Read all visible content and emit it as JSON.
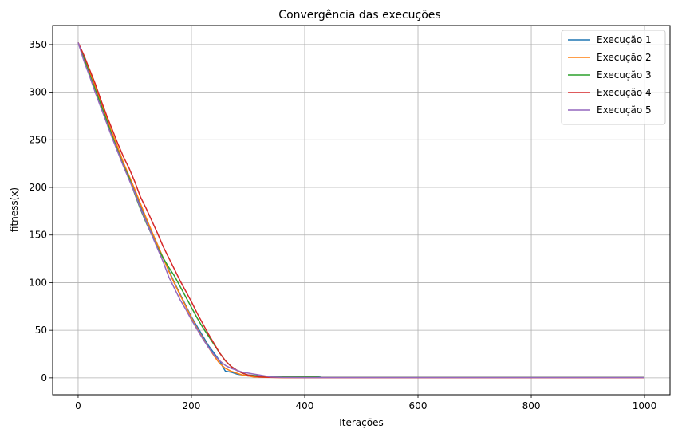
{
  "chart_data": {
    "type": "line",
    "title": "Convergência das execuções",
    "xlabel": "Iterações",
    "ylabel": "fitness(x)",
    "xlim": [
      -45,
      1045
    ],
    "ylim": [
      -17.7,
      370
    ],
    "xticks": [
      0,
      200,
      400,
      600,
      800,
      1000
    ],
    "yticks": [
      0,
      50,
      100,
      150,
      200,
      250,
      300,
      350
    ],
    "grid": true,
    "legend_position": "top-right",
    "series": [
      {
        "name": "Execução 1",
        "color": "#1f77b4",
        "x": [
          0,
          10,
          20,
          30,
          40,
          50,
          60,
          70,
          80,
          90,
          100,
          110,
          120,
          130,
          140,
          150,
          160,
          170,
          180,
          190,
          200,
          210,
          220,
          230,
          240,
          250,
          255,
          260,
          270,
          280,
          290,
          300,
          320,
          340,
          360,
          380,
          400,
          425,
          430,
          500,
          600,
          700,
          800,
          900,
          1000
        ],
        "y": [
          352,
          337,
          320,
          305,
          290,
          273,
          255,
          240,
          224,
          210,
          196,
          180,
          167,
          153,
          140,
          126,
          113,
          100,
          88,
          76,
          64,
          54,
          44,
          34,
          26,
          18,
          12,
          7,
          6,
          4,
          3,
          2,
          1.5,
          1,
          1,
          1,
          1,
          1,
          0.5,
          0.5,
          0.5,
          0.5,
          0.5,
          0.5,
          0.5
        ]
      },
      {
        "name": "Execução 2",
        "color": "#ff7f0e",
        "x": [
          0,
          10,
          20,
          30,
          40,
          50,
          60,
          70,
          80,
          90,
          100,
          110,
          120,
          130,
          140,
          150,
          160,
          170,
          180,
          190,
          200,
          210,
          220,
          230,
          240,
          250,
          260,
          270,
          280,
          290,
          300,
          310,
          330,
          360,
          400,
          500,
          600,
          700,
          800,
          900,
          1000
        ],
        "y": [
          352,
          338,
          322,
          306,
          290,
          273,
          257,
          242,
          226,
          212,
          198,
          183,
          168,
          154,
          140,
          126,
          112,
          99,
          87,
          75,
          63,
          52,
          42,
          32,
          23,
          15,
          10,
          7,
          5,
          3,
          2,
          1,
          0.5,
          0.3,
          0.2,
          0.2,
          0.2,
          0.2,
          0.2,
          0.2,
          0.2
        ]
      },
      {
        "name": "Execução 3",
        "color": "#2ca02c",
        "x": [
          0,
          10,
          20,
          30,
          40,
          50,
          60,
          70,
          80,
          90,
          100,
          110,
          120,
          130,
          140,
          150,
          160,
          170,
          180,
          190,
          200,
          210,
          220,
          230,
          240,
          250,
          260,
          270,
          280,
          290,
          300,
          320,
          340,
          360,
          380,
          400,
          420,
          430,
          500,
          600,
          700,
          800,
          900,
          1000
        ],
        "y": [
          352,
          336,
          319,
          303,
          287,
          271,
          254,
          238,
          223,
          210,
          193,
          177,
          163,
          150,
          137,
          126,
          116,
          107,
          96,
          85,
          74,
          63,
          53,
          44,
          35,
          26,
          18,
          12,
          8,
          5,
          3,
          2,
          1.5,
          1,
          1,
          1,
          1,
          0.5,
          0.5,
          0.5,
          0.5,
          0.5,
          0.5,
          0.5
        ]
      },
      {
        "name": "Execução 4",
        "color": "#d62728",
        "x": [
          0,
          10,
          20,
          30,
          40,
          50,
          60,
          70,
          80,
          90,
          100,
          110,
          120,
          130,
          140,
          150,
          160,
          170,
          180,
          190,
          200,
          210,
          220,
          230,
          240,
          250,
          260,
          270,
          280,
          290,
          300,
          310,
          320,
          340,
          360,
          400,
          500,
          600,
          700,
          800,
          900,
          1000
        ],
        "y": [
          352,
          339,
          324,
          309,
          292,
          276,
          261,
          246,
          232,
          220,
          206,
          190,
          178,
          165,
          152,
          138,
          126,
          114,
          102,
          91,
          80,
          68,
          57,
          46,
          36,
          26,
          18,
          12,
          8,
          5,
          3,
          2,
          1,
          0.5,
          0.3,
          0.2,
          0.2,
          0.2,
          0.2,
          0.2,
          0.2,
          0.2
        ]
      },
      {
        "name": "Execução 5",
        "color": "#9467bd",
        "x": [
          0,
          10,
          20,
          30,
          40,
          50,
          60,
          70,
          80,
          90,
          100,
          110,
          120,
          130,
          140,
          150,
          160,
          170,
          180,
          190,
          200,
          210,
          220,
          230,
          240,
          250,
          260,
          270,
          280,
          290,
          300,
          310,
          320,
          330,
          340,
          360,
          400,
          500,
          600,
          700,
          800,
          900,
          1000
        ],
        "y": [
          352,
          333,
          317,
          300,
          284,
          268,
          252,
          237,
          222,
          208,
          194,
          178,
          164,
          150,
          136,
          122,
          106,
          94,
          82,
          72,
          61,
          51,
          41,
          32,
          24,
          18,
          13,
          10,
          8,
          6,
          5,
          4,
          3,
          2,
          1,
          0.5,
          0.3,
          0.3,
          0.3,
          0.3,
          0.3,
          0.3,
          0.3
        ]
      }
    ]
  }
}
